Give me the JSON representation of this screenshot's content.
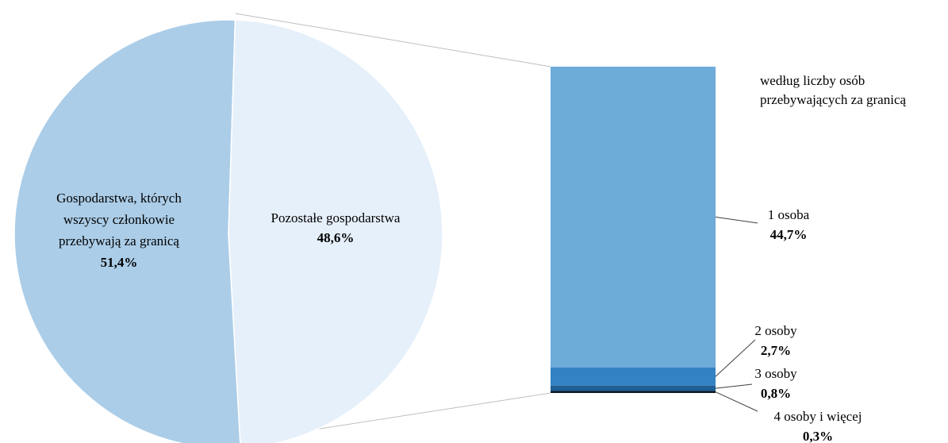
{
  "chart_data": {
    "type": "pie",
    "subtype": "bar-of-pie",
    "pie": {
      "slices": [
        {
          "label_lines": [
            "Gospodarstwa, których",
            "wszyscy członkowie",
            "przebywają za granicą"
          ],
          "value": 51.4,
          "value_label": "51,4%",
          "color": "#abcde8"
        },
        {
          "label_lines": [
            "Pozostałe gospodarstwa"
          ],
          "value": 48.6,
          "value_label": "48,6%",
          "color": "#e6f0fa"
        }
      ],
      "exploded_slice": 1
    },
    "bar": {
      "title_lines": [
        "według liczby osób",
        "przebywających za granicą"
      ],
      "segments": [
        {
          "label": "1 osoba",
          "value": 44.7,
          "value_label": "44,7%",
          "color": "#6dabd9"
        },
        {
          "label": "2 osoby",
          "value": 2.7,
          "value_label": "2,7%",
          "color": "#3383c4"
        },
        {
          "label": "3 osoby",
          "value": 0.8,
          "value_label": "0,8%",
          "color": "#1f5f96"
        },
        {
          "label": "4 osoby i więcej",
          "value": 0.3,
          "value_label": "0,3%",
          "color": "#0d1a26"
        }
      ]
    }
  }
}
